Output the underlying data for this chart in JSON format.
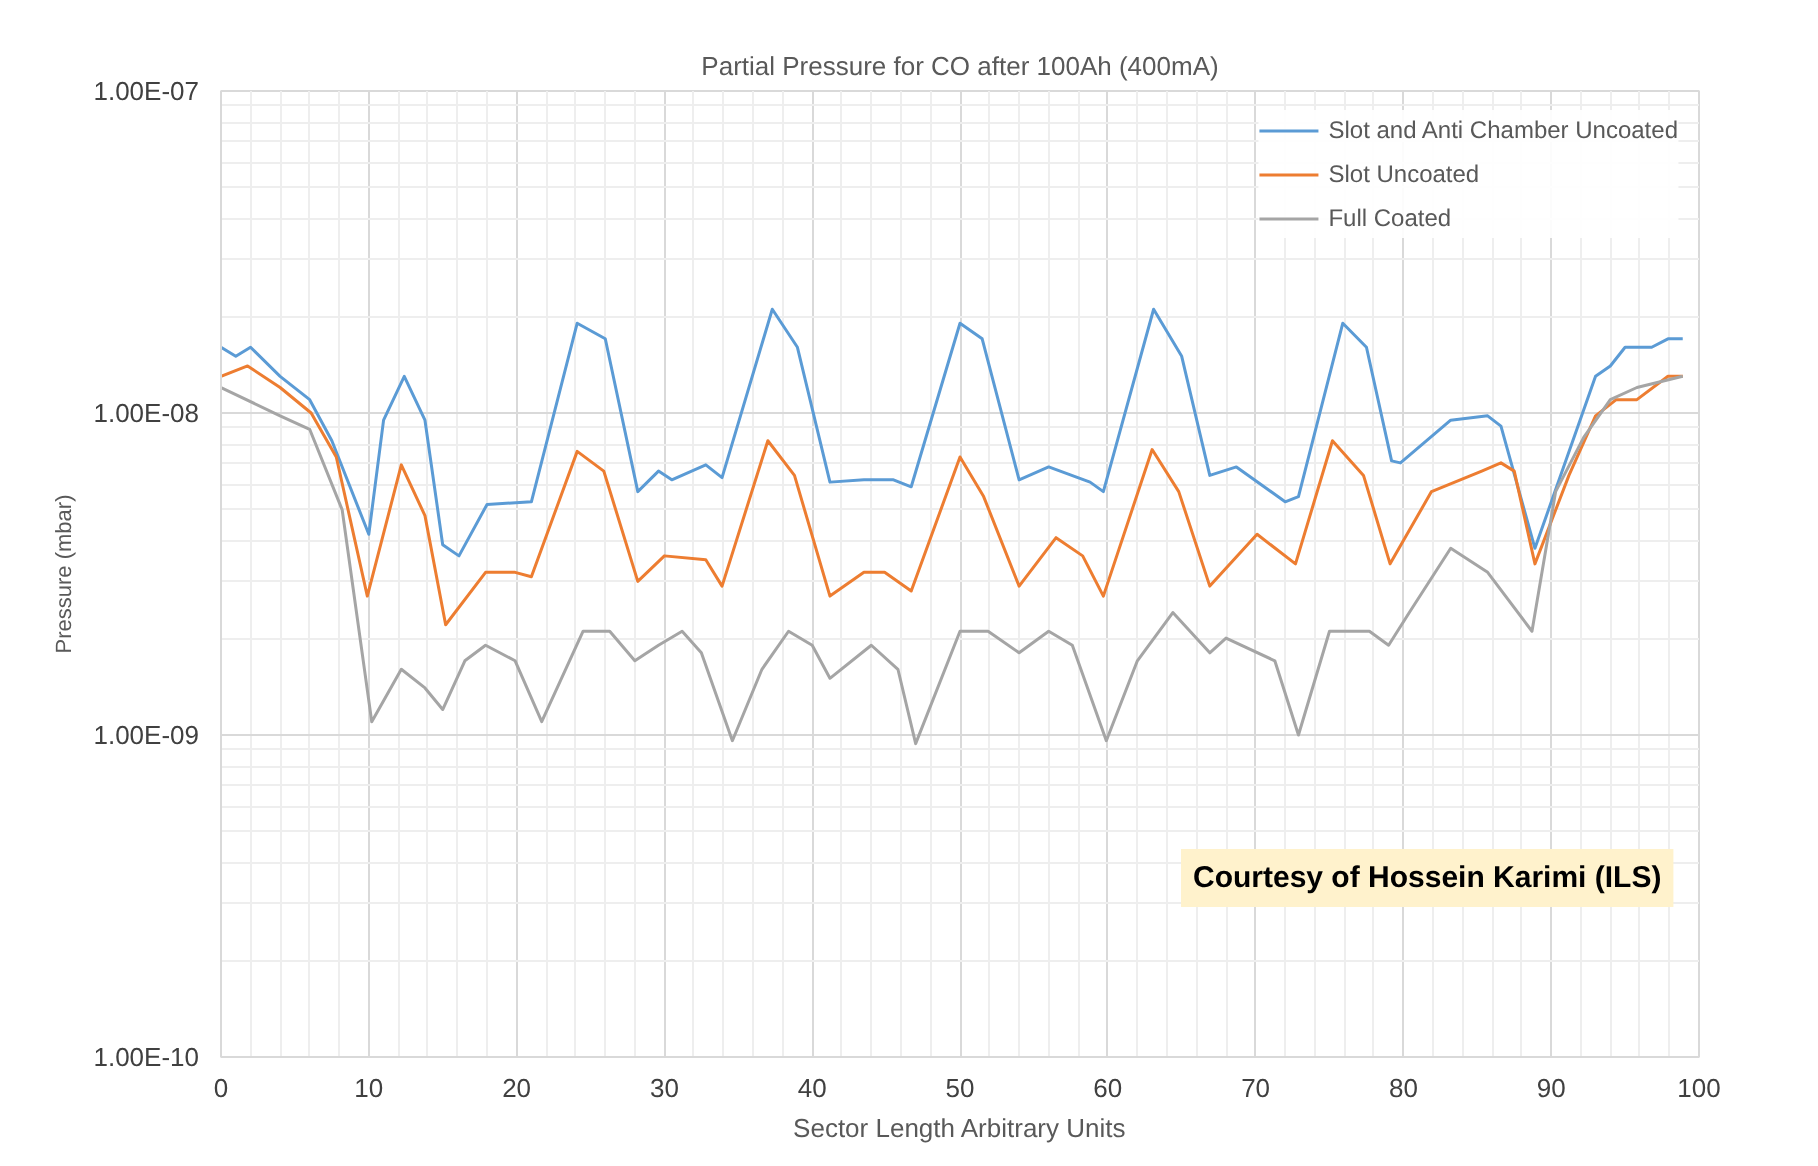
{
  "chart_data": {
    "type": "line",
    "title": "Partial Pressure for CO after 100Ah (400mA)",
    "xlabel": "Sector Length Arbitrary Units",
    "ylabel": "Pressure (mbar)",
    "log": "y",
    "grid": true,
    "legend": "top right",
    "marker": "none",
    "line_style": "solid",
    "xlim": [
      0,
      100
    ],
    "xticks": [
      0,
      10,
      20,
      30,
      40,
      50,
      60,
      70,
      80,
      90,
      100
    ],
    "ylim": [
      1e-10,
      1e-07
    ],
    "yticks": [
      {
        "value": 1e-10,
        "label": "1.00E-10"
      },
      {
        "value": 1e-09,
        "label": "1.00E-09"
      },
      {
        "value": 1e-08,
        "label": "1.00E-08"
      },
      {
        "value": 1e-07,
        "label": "1.00E-07"
      }
    ],
    "annotations": [
      "Courtesy of Hossein Karimi (ILS)"
    ],
    "series": [
      {
        "name": "Slot and Anti Chamber Uncoated",
        "color": "#5b9bd5",
        "x": [
          0,
          1,
          2,
          4,
          6,
          7.5,
          10,
          11,
          12.4,
          13.8,
          15,
          16.1,
          18,
          21,
          24.1,
          26,
          28.2,
          29.6,
          30.5,
          32.8,
          33.9,
          37.3,
          39,
          41.2,
          43.5,
          45.5,
          46.7,
          50,
          51.5,
          54,
          56,
          58.8,
          59.7,
          63.1,
          65,
          66.9,
          68.7,
          72,
          72.9,
          75.9,
          77.5,
          79.2,
          79.8,
          83.2,
          85.7,
          86.6,
          88.9,
          93,
          94,
          95,
          96.8,
          97.9,
          98.9
        ],
        "values": [
          1.6e-08,
          1.5e-08,
          1.6e-08,
          1.3e-08,
          1.1e-08,
          8.2e-09,
          4.2e-09,
          9.5e-09,
          1.3e-08,
          9.5e-09,
          3.9e-09,
          3.6e-09,
          5.2e-09,
          5.3e-09,
          1.9e-08,
          1.7e-08,
          5.7e-09,
          6.6e-09,
          6.2e-09,
          6.9e-09,
          6.3e-09,
          2.1e-08,
          1.6e-08,
          6.1e-09,
          6.2e-09,
          6.2e-09,
          5.9e-09,
          1.9e-08,
          1.7e-08,
          6.2e-09,
          6.8e-09,
          6.1e-09,
          5.7e-09,
          2.1e-08,
          1.5e-08,
          6.4e-09,
          6.8e-09,
          5.3e-09,
          5.5e-09,
          1.9e-08,
          1.6e-08,
          7.1e-09,
          7e-09,
          9.5e-09,
          9.8e-09,
          9.1e-09,
          3.8e-09,
          1.3e-08,
          1.4e-08,
          1.6e-08,
          1.6e-08,
          1.7e-08,
          1.7e-08
        ]
      },
      {
        "name": "Slot Uncoated",
        "color": "#ed7d31",
        "x": [
          0,
          1.8,
          4,
          6.1,
          7.8,
          9.9,
          12.2,
          13.8,
          15.2,
          17.9,
          19.9,
          21,
          24.1,
          25.9,
          28.2,
          30,
          32.8,
          33.9,
          37,
          38.8,
          41.2,
          43.5,
          44.9,
          46.7,
          50,
          51.6,
          54,
          56.5,
          58.3,
          59.7,
          63,
          64.8,
          66.9,
          70.1,
          72.7,
          75.2,
          77.3,
          79.1,
          81.9,
          85.3,
          86.6,
          87.5,
          88.9,
          91.2,
          93,
          94.4,
          95.8,
          97.9,
          98.9
        ],
        "values": [
          1.3e-08,
          1.4e-08,
          1.2e-08,
          1e-08,
          7.3e-09,
          2.7e-09,
          6.9e-09,
          4.8e-09,
          2.2e-09,
          3.2e-09,
          3.2e-09,
          3.1e-09,
          7.6e-09,
          6.6e-09,
          3e-09,
          3.6e-09,
          3.5e-09,
          2.9e-09,
          8.2e-09,
          6.4e-09,
          2.7e-09,
          3.2e-09,
          3.2e-09,
          2.8e-09,
          7.3e-09,
          5.5e-09,
          2.9e-09,
          4.1e-09,
          3.6e-09,
          2.7e-09,
          7.7e-09,
          5.7e-09,
          2.9e-09,
          4.2e-09,
          3.4e-09,
          8.2e-09,
          6.4e-09,
          3.4e-09,
          5.7e-09,
          6.6e-09,
          7e-09,
          6.6e-09,
          3.4e-09,
          6.4e-09,
          9.8e-09,
          1.1e-08,
          1.1e-08,
          1.3e-08,
          1.3e-08
        ]
      },
      {
        "name": "Full Coated",
        "color": "#a5a5a5",
        "x": [
          0,
          4,
          6,
          8.2,
          10.2,
          12.2,
          13.8,
          15,
          16.5,
          17.9,
          19.9,
          21.7,
          24.5,
          26.3,
          28,
          29.6,
          31.2,
          32.5,
          34.6,
          36.6,
          38.4,
          40,
          41.2,
          44,
          45.8,
          47,
          50,
          51.9,
          54,
          56,
          57.6,
          59.9,
          62,
          64.4,
          66.9,
          68,
          71.3,
          72.9,
          75,
          77.7,
          79,
          80.4,
          83.2,
          85.7,
          88.7,
          90.3,
          92.2,
          94,
          95.8,
          98.9
        ],
        "values": [
          1.2e-08,
          9.8e-09,
          8.9e-09,
          5e-09,
          1.1e-09,
          1.6e-09,
          1.4e-09,
          1.2e-09,
          1.7e-09,
          1.9e-09,
          1.7e-09,
          1.1e-09,
          2.1e-09,
          2.1e-09,
          1.7e-09,
          1.9e-09,
          2.1e-09,
          1.8e-09,
          9.6e-10,
          1.6e-09,
          2.1e-09,
          1.9e-09,
          1.5e-09,
          1.9e-09,
          1.6e-09,
          9.4e-10,
          2.1e-09,
          2.1e-09,
          1.8e-09,
          2.1e-09,
          1.9e-09,
          9.6e-10,
          1.7e-09,
          2.4e-09,
          1.8e-09,
          2e-09,
          1.7e-09,
          1e-09,
          2.1e-09,
          2.1e-09,
          1.9e-09,
          2.4e-09,
          3.8e-09,
          3.2e-09,
          2.1e-09,
          5.7e-09,
          8.4e-09,
          1.1e-08,
          1.2e-08,
          1.3e-08
        ]
      }
    ]
  }
}
